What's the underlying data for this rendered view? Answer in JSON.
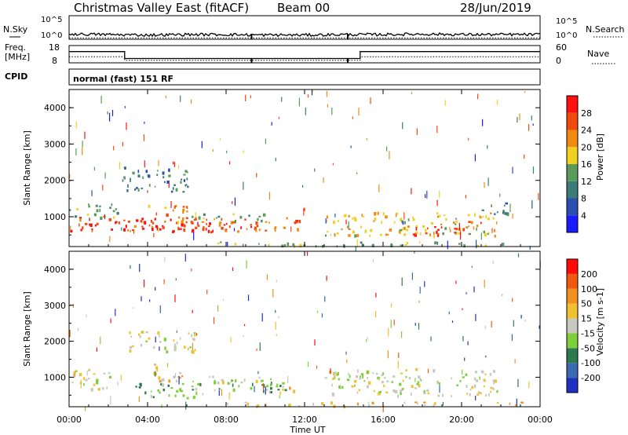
{
  "header": {
    "title": "Christmas Valley East (fitACF)",
    "beam": "Beam 00",
    "date": "28/Jun/2019"
  },
  "summary_panels": {
    "nsky": {
      "label": "N.Sky",
      "ticks": [
        "10^5",
        "10^0"
      ]
    },
    "nsearch": {
      "label": "N.Search",
      "ticks": [
        "10^5",
        "10^0"
      ]
    },
    "freq": {
      "label_line1": "Freq.",
      "label_line2": "[MHz]",
      "ticks": [
        "18",
        "8"
      ]
    },
    "nave": {
      "label": "Nave",
      "ticks": [
        "60",
        "0"
      ]
    },
    "cpid": {
      "label": "CPID",
      "text": "normal (fast) 151 RF"
    }
  },
  "colors": {
    "power": [
      "#1a1aff",
      "#2a4fb0",
      "#3c7c78",
      "#5a9a5a",
      "#f0d020",
      "#f08a10",
      "#f04a10",
      "#ff1010"
    ],
    "velocity": [
      "#2030c0",
      "#3a6ab0",
      "#2e7a50",
      "#7ed03a",
      "#c8c8c0",
      "#f0c030",
      "#f09020",
      "#f05a10",
      "#ff0a0a"
    ]
  },
  "chart_data": [
    {
      "type": "line",
      "name": "N.Sky / N.Search",
      "xlabel": "",
      "ylabel": "N.Sky",
      "ylim_log10": [
        0,
        5
      ],
      "series": [
        {
          "name": "N.Sky",
          "x": [
            "00:00",
            "02:00",
            "04:00",
            "06:00",
            "08:00",
            "10:00",
            "12:00",
            "14:00",
            "16:00",
            "18:00",
            "20:00",
            "22:00",
            "24:00"
          ],
          "values_log10": [
            1.1,
            1.0,
            0.9,
            1.0,
            1.0,
            0.9,
            0.9,
            1.0,
            1.0,
            1.1,
            1.0,
            1.0,
            1.0
          ]
        },
        {
          "name": "N.Search",
          "x": [
            "00:00",
            "06:00",
            "12:00",
            "18:00",
            "24:00"
          ],
          "values_log10": [
            0.3,
            0.3,
            0.3,
            0.3,
            0.3
          ]
        }
      ]
    },
    {
      "type": "line",
      "name": "Freq / Nave",
      "ylabel": "Freq. [MHz]",
      "ylim": [
        8,
        18
      ],
      "series": [
        {
          "name": "Freq",
          "x": [
            "00:00",
            "02:50",
            "02:50",
            "14:50",
            "14:50",
            "24:00"
          ],
          "values": [
            14.5,
            14.5,
            10.5,
            10.5,
            14.5,
            14.5
          ]
        },
        {
          "name": "Nave",
          "x": [
            "00:00",
            "02:50",
            "02:50",
            "14:50",
            "14:50",
            "24:00"
          ],
          "values": [
            11.5,
            11.5,
            9.5,
            9.5,
            11.5,
            11.5
          ]
        }
      ]
    },
    {
      "type": "heatmap",
      "name": "Power",
      "xlabel": "",
      "ylabel": "Slant Range [km]",
      "colorbar_label": "Power [dB]",
      "colorbar_ticks": [
        "28",
        "24",
        "20",
        "16",
        "12",
        "8",
        "4"
      ],
      "xlim_hours": [
        0,
        24
      ],
      "ylim_km": [
        180,
        4500
      ],
      "yticks": [
        "4000",
        "3000",
        "2000",
        "1000"
      ],
      "regions": [
        {
          "t0": 0.0,
          "t1": 11.8,
          "r0": 600,
          "r1": 1000,
          "level": 6
        },
        {
          "t0": 0.2,
          "t1": 2.2,
          "r0": 650,
          "r1": 850,
          "level": 7
        },
        {
          "t0": 3.6,
          "t1": 8.0,
          "r0": 600,
          "r1": 900,
          "level": 7
        },
        {
          "t0": 4.0,
          "t1": 6.0,
          "r0": 850,
          "r1": 1350,
          "level": 5
        },
        {
          "t0": 2.7,
          "t1": 6.2,
          "r0": 1700,
          "r1": 2400,
          "level": 2
        },
        {
          "t0": 6.0,
          "t1": 10.0,
          "r0": 900,
          "r1": 1100,
          "level": 3
        },
        {
          "t0": 0.0,
          "t1": 2.6,
          "r0": 1000,
          "r1": 1400,
          "level": 3
        },
        {
          "t0": 13.0,
          "t1": 21.8,
          "r0": 500,
          "r1": 1150,
          "level": 4
        },
        {
          "t0": 16.8,
          "t1": 19.8,
          "r0": 500,
          "r1": 750,
          "level": 7
        },
        {
          "t0": 19.5,
          "t1": 21.0,
          "r0": 650,
          "r1": 900,
          "level": 6
        },
        {
          "t0": 7.0,
          "t1": 23.0,
          "r0": 220,
          "r1": 330,
          "level": 3
        },
        {
          "t0": 21.0,
          "t1": 22.5,
          "r0": 1000,
          "r1": 1400,
          "level": 2
        }
      ]
    },
    {
      "type": "heatmap",
      "name": "Velocity",
      "xlabel": "Time UT",
      "ylabel": "Slant Range [km]",
      "colorbar_label": "Velocity [m s-1]",
      "colorbar_ticks": [
        "200",
        "100",
        "50",
        "15",
        "-15",
        "-50",
        "-100",
        "-200"
      ],
      "xlim_hours": [
        0,
        24
      ],
      "ylim_km": [
        180,
        4500
      ],
      "yticks": [
        "4000",
        "3000",
        "2000",
        "1000"
      ],
      "xticks": [
        "00:00",
        "04:00",
        "08:00",
        "12:00",
        "16:00",
        "20:00",
        "00:00"
      ],
      "regions": [
        {
          "t0": 0.0,
          "t1": 2.2,
          "r0": 650,
          "r1": 1250,
          "level": 4
        },
        {
          "t0": 3.0,
          "t1": 6.5,
          "r0": 1700,
          "r1": 2300,
          "level": 4
        },
        {
          "t0": 3.2,
          "t1": 7.0,
          "r0": 450,
          "r1": 850,
          "level": 3
        },
        {
          "t0": 6.0,
          "t1": 11.0,
          "r0": 600,
          "r1": 950,
          "level": 3
        },
        {
          "t0": 4.0,
          "t1": 5.8,
          "r0": 850,
          "r1": 1400,
          "level": 5
        },
        {
          "t0": 6.5,
          "t1": 10.5,
          "r0": 850,
          "r1": 1050,
          "level": 4
        },
        {
          "t0": 13.0,
          "t1": 21.8,
          "r0": 500,
          "r1": 1250,
          "level": 4
        },
        {
          "t0": 8.0,
          "t1": 23.2,
          "r0": 220,
          "r1": 330,
          "level": 5
        },
        {
          "t0": 10.0,
          "t1": 12.0,
          "r0": 600,
          "r1": 750,
          "level": 5
        }
      ]
    }
  ],
  "xaxis": {
    "ticks": [
      "00:00",
      "04:00",
      "08:00",
      "12:00",
      "16:00",
      "20:00",
      "00:00"
    ],
    "label": "Time UT"
  }
}
